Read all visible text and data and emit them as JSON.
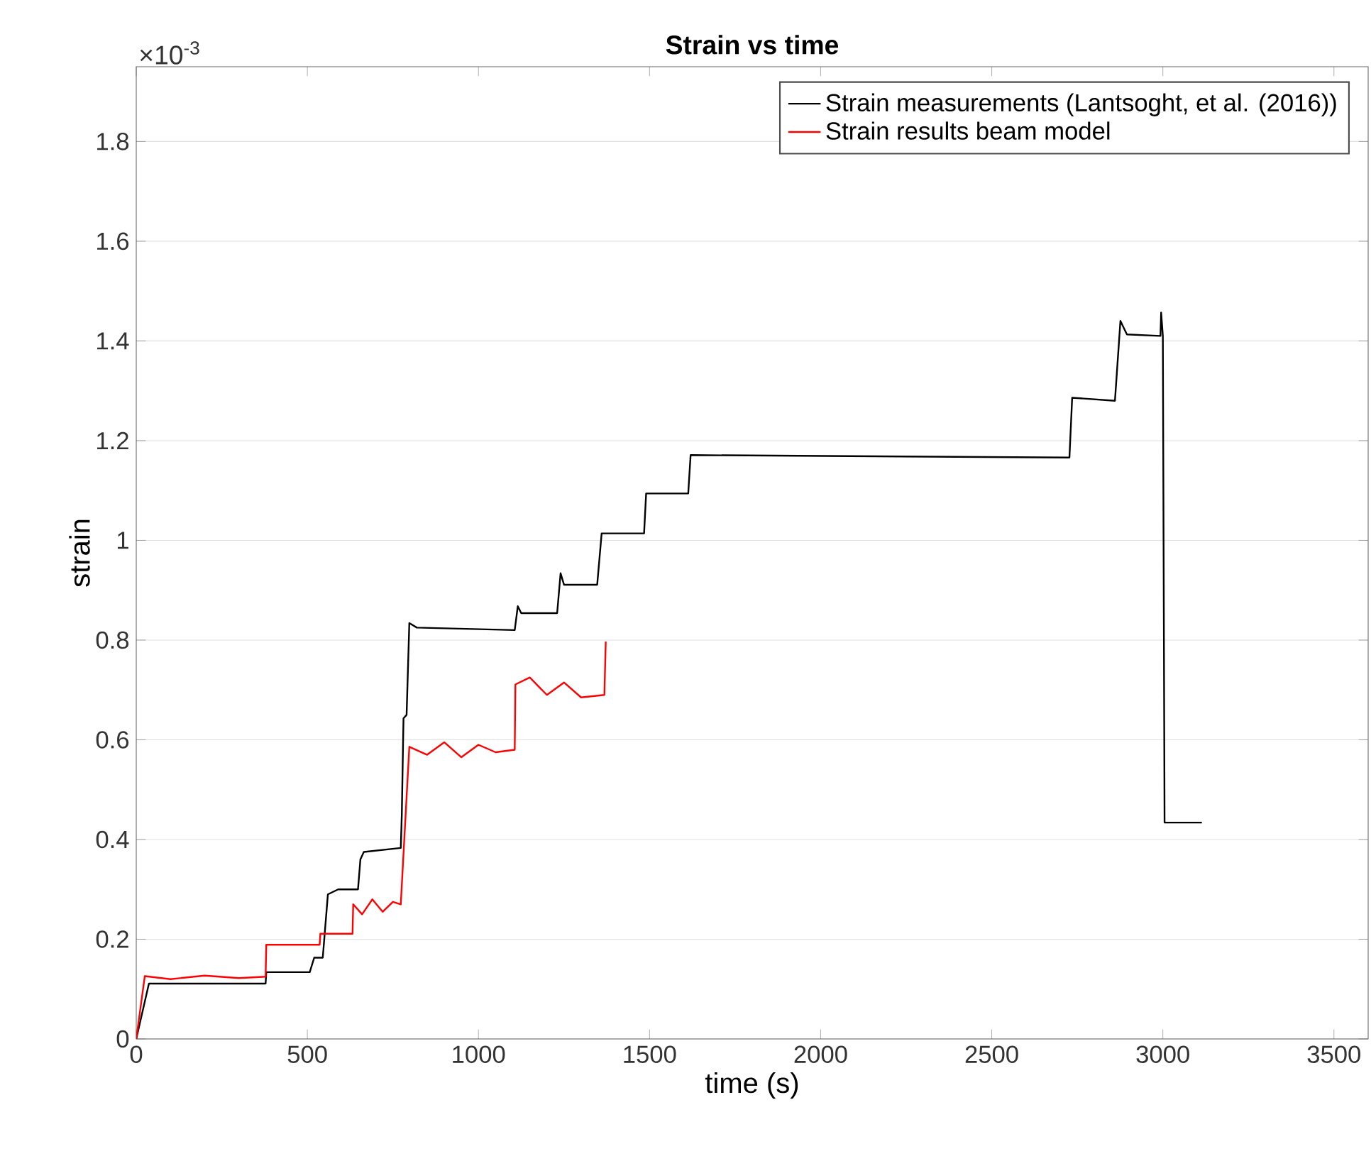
{
  "chart_data": {
    "type": "line",
    "title": "Strain vs time",
    "xlabel": "time (s)",
    "ylabel": "strain",
    "annotations": [
      "×10$^{-3}$"
    ],
    "xlim": [
      0,
      3600
    ],
    "ylim": [
      0,
      1.95
    ],
    "xticks": [
      0,
      500,
      1000,
      1500,
      2000,
      2500,
      3000,
      3500
    ],
    "yticks": [
      0,
      0.2,
      0.4,
      0.6,
      0.8,
      1,
      1.2,
      1.4,
      1.6,
      1.8
    ],
    "grid": "y",
    "legend": "top right",
    "marker": "none",
    "line_style": "solid",
    "series": [
      {
        "name": "Strain measurements (Lantsoght, et al. (2016))",
        "color": "#000000",
        "x": [
          0,
          37,
          378,
          380,
          507,
          520,
          545,
          560,
          590,
          648,
          655,
          665,
          773,
          776,
          781,
          790,
          798,
          820,
          1106,
          1115,
          1125,
          1230,
          1240,
          1250,
          1347,
          1360,
          1484,
          1490,
          1613,
          1620,
          2727,
          2735,
          2860,
          2876,
          2895,
          2993,
          2995,
          3000,
          3005,
          3114
        ],
        "values": [
          0,
          0.111,
          0.111,
          0.134,
          0.134,
          0.163,
          0.163,
          0.29,
          0.3,
          0.3,
          0.36,
          0.375,
          0.383,
          0.45,
          0.643,
          0.65,
          0.834,
          0.825,
          0.82,
          0.868,
          0.854,
          0.854,
          0.934,
          0.911,
          0.911,
          1.014,
          1.014,
          1.094,
          1.094,
          1.171,
          1.166,
          1.286,
          1.28,
          1.44,
          1.413,
          1.41,
          1.457,
          1.41,
          0.434,
          0.434
        ]
      },
      {
        "name": "Strain results beam model",
        "color": "#ff0000",
        "x": [
          0,
          25,
          100,
          200,
          300,
          378,
          380,
          536,
          538,
          632,
          634,
          660,
          690,
          720,
          750,
          773,
          798,
          850,
          900,
          950,
          1000,
          1050,
          1106,
          1108,
          1150,
          1200,
          1250,
          1300,
          1368,
          1372
        ],
        "values": [
          0,
          0.126,
          0.12,
          0.127,
          0.122,
          0.125,
          0.189,
          0.189,
          0.211,
          0.211,
          0.27,
          0.25,
          0.28,
          0.255,
          0.275,
          0.27,
          0.586,
          0.57,
          0.595,
          0.565,
          0.59,
          0.575,
          0.58,
          0.711,
          0.725,
          0.69,
          0.715,
          0.685,
          0.69,
          0.797
        ]
      }
    ]
  }
}
